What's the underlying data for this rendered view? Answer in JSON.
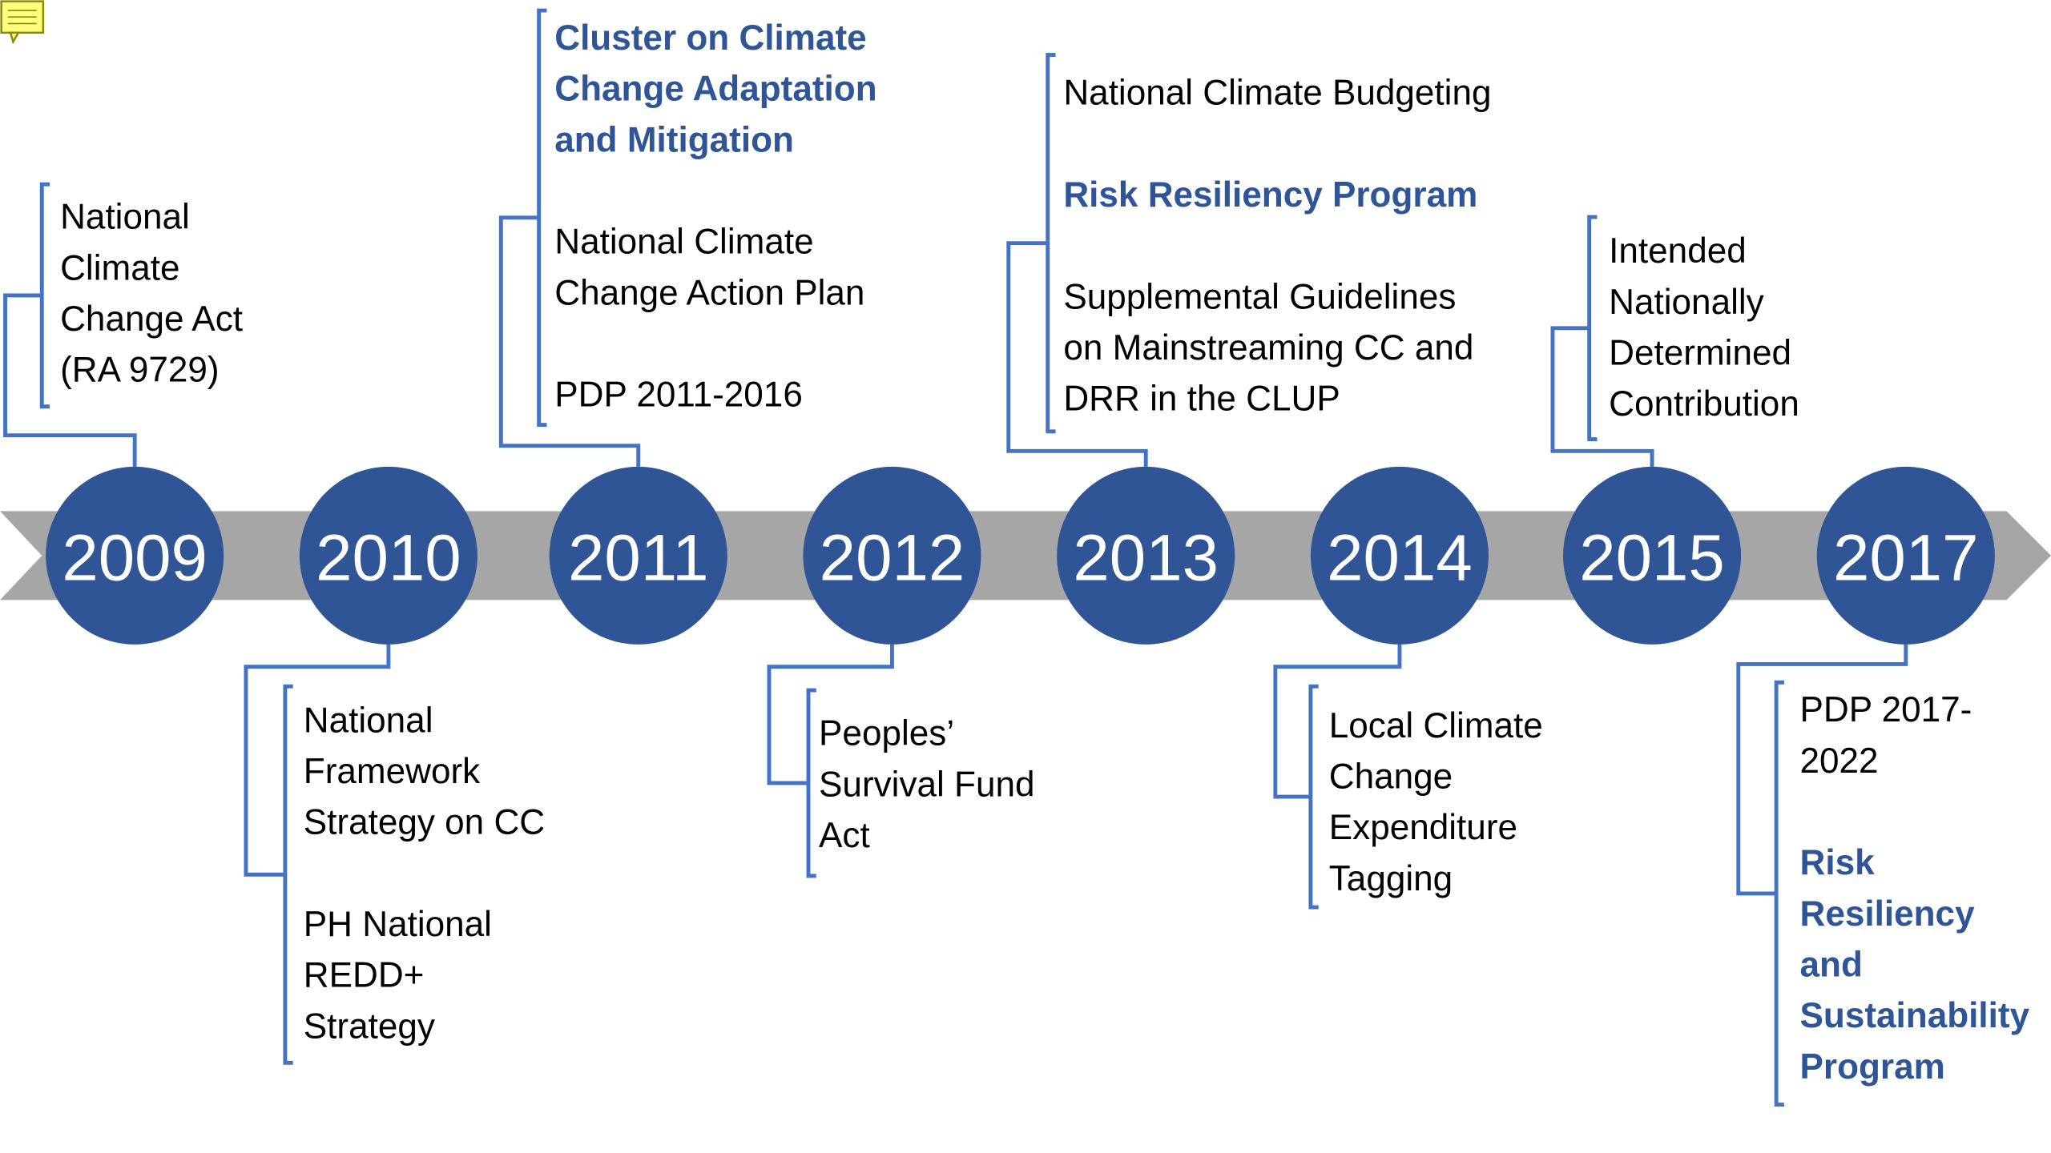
{
  "events": [
    {
      "year": "2009",
      "position": "top",
      "items": [
        {
          "lines": [
            "National",
            "Climate",
            "Change Act",
            "(RA 9729)"
          ],
          "highlight": false
        }
      ]
    },
    {
      "year": "2010",
      "position": "bottom",
      "items": [
        {
          "lines": [
            "National",
            "Framework",
            "Strategy on CC"
          ],
          "highlight": false
        },
        {
          "lines": [
            "PH National",
            "REDD+",
            "Strategy"
          ],
          "highlight": false
        }
      ]
    },
    {
      "year": "2011",
      "position": "top",
      "items": [
        {
          "lines": [
            "Cluster on Climate",
            "Change Adaptation",
            "and Mitigation"
          ],
          "highlight": true
        },
        {
          "lines": [
            "National Climate",
            "Change Action Plan"
          ],
          "highlight": false
        },
        {
          "lines": [
            "PDP 2011-2016"
          ],
          "highlight": false
        }
      ]
    },
    {
      "year": "2012",
      "position": "bottom",
      "items": [
        {
          "lines": [
            "Peoples’",
            "Survival Fund",
            "Act"
          ],
          "highlight": false
        }
      ]
    },
    {
      "year": "2013",
      "position": "top",
      "items": [
        {
          "lines": [
            "National Climate Budgeting"
          ],
          "highlight": false
        },
        {
          "lines": [
            "Risk Resiliency Program"
          ],
          "highlight": true
        },
        {
          "lines": [
            "Supplemental Guidelines",
            "on Mainstreaming CC and",
            "DRR in the CLUP"
          ],
          "highlight": false
        }
      ]
    },
    {
      "year": "2014",
      "position": "bottom",
      "items": [
        {
          "lines": [
            "Local Climate",
            "Change",
            "Expenditure",
            "Tagging"
          ],
          "highlight": false
        }
      ]
    },
    {
      "year": "2015",
      "position": "top",
      "items": [
        {
          "lines": [
            "Intended",
            "Nationally",
            "Determined",
            "Contribution"
          ],
          "highlight": false
        }
      ]
    },
    {
      "year": "2017",
      "position": "bottom",
      "items": [
        {
          "lines": [
            "PDP 2017-",
            "2022"
          ],
          "highlight": false
        },
        {
          "lines": [
            "Risk",
            "Resiliency",
            "and",
            "Sustainability",
            "Program"
          ],
          "highlight": true
        }
      ]
    }
  ]
}
